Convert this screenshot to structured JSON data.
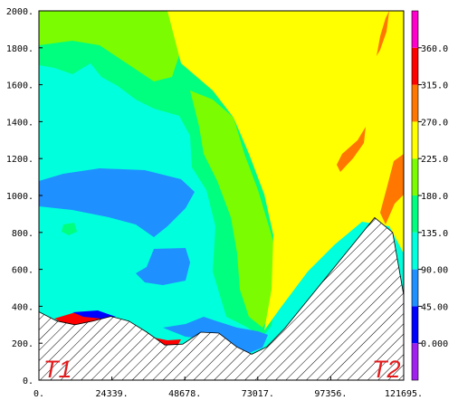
{
  "chart_data": {
    "type": "heatmap",
    "title": "",
    "xlabel": "",
    "ylabel": "",
    "xlim": [
      0,
      121695
    ],
    "ylim": [
      0,
      2000
    ],
    "x_ticks": [
      "0.",
      "24339.",
      "48678.",
      "73017.",
      "97356.",
      "121695."
    ],
    "y_ticks": [
      "0.",
      "200.",
      "400.",
      "600.",
      "800.",
      "1000.",
      "1200.",
      "1400.",
      "1600.",
      "1800.",
      "2000."
    ],
    "colorbar": {
      "ticks": [
        "0.000",
        "45.00",
        "90.00",
        "135.0",
        "180.0",
        "225.0",
        "270.0",
        "315.0",
        "360.0"
      ],
      "bins": [
        {
          "range": "< 0",
          "color": "#a020f0"
        },
        {
          "range": "0-45",
          "color": "#0000ff"
        },
        {
          "range": "45-90",
          "color": "#1e90ff"
        },
        {
          "range": "90-135",
          "color": "#00ffdd"
        },
        {
          "range": "135-180",
          "color": "#00ff7f"
        },
        {
          "range": "180-225",
          "color": "#7cfc00"
        },
        {
          "range": "225-270",
          "color": "#ffff00"
        },
        {
          "range": "270-315",
          "color": "#ff7700"
        },
        {
          "range": "315-360",
          "color": "#ff0000"
        },
        {
          "range": "> 360",
          "color": "#ff00cc"
        }
      ]
    },
    "terrain": {
      "description_x": [
        0,
        6000,
        12000,
        18000,
        24000,
        30000,
        36000,
        42000,
        48000,
        54000,
        60000,
        66000,
        71000,
        76000,
        82000,
        88000,
        94000,
        100000,
        106000,
        112000,
        118000,
        121695
      ],
      "description_y": [
        370,
        320,
        300,
        320,
        345,
        320,
        260,
        190,
        195,
        260,
        255,
        180,
        140,
        180,
        280,
        400,
        520,
        640,
        760,
        880,
        800,
        460
      ]
    },
    "transect_labels": [
      "T1",
      "T2"
    ]
  }
}
